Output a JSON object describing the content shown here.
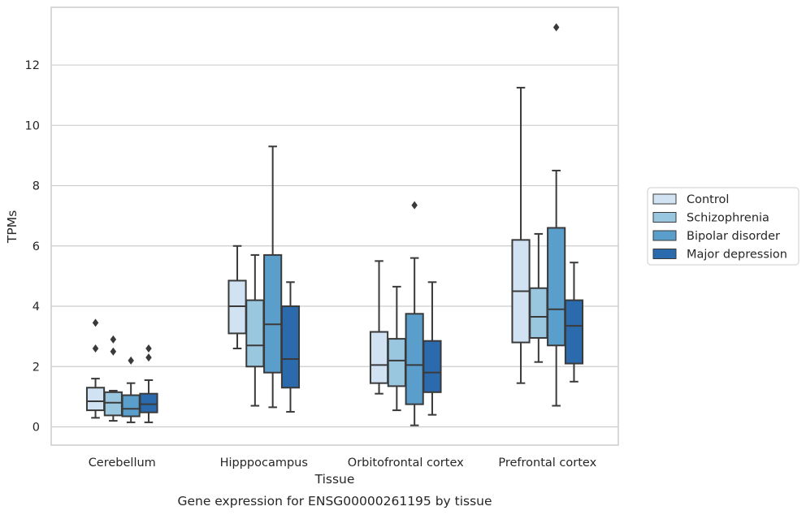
{
  "chart_data": {
    "type": "box",
    "caption": "Gene expression for ENSG00000261195 by tissue",
    "xlabel": "Tissue",
    "ylabel": "TPMs",
    "ylim": [
      -0.6,
      14.0
    ],
    "yticks": [
      0,
      2,
      4,
      6,
      8,
      10,
      12
    ],
    "grid": "horizontal",
    "legend_position": "right",
    "categories": [
      "Cerebellum",
      "Hipppocampus",
      "Orbitofrontal cortex",
      "Prefrontal cortex"
    ],
    "series": [
      {
        "name": "Control",
        "color": "#d1e2f2",
        "boxes": [
          {
            "whislo": 0.3,
            "q1": 0.55,
            "med": 0.85,
            "q3": 1.3,
            "whishi": 1.6,
            "fliers": [
              2.6,
              3.45
            ]
          },
          {
            "whislo": 2.6,
            "q1": 3.1,
            "med": 4.0,
            "q3": 4.85,
            "whishi": 6.0,
            "fliers": []
          },
          {
            "whislo": 1.1,
            "q1": 1.45,
            "med": 2.05,
            "q3": 3.15,
            "whishi": 5.5,
            "fliers": []
          },
          {
            "whislo": 1.45,
            "q1": 2.8,
            "med": 4.5,
            "q3": 6.2,
            "whishi": 11.25,
            "fliers": []
          }
        ]
      },
      {
        "name": "Schizophrenia",
        "color": "#9ac7e0",
        "boxes": [
          {
            "whislo": 0.2,
            "q1": 0.38,
            "med": 0.8,
            "q3": 1.15,
            "whishi": 1.2,
            "fliers": [
              2.5,
              2.9
            ]
          },
          {
            "whislo": 0.7,
            "q1": 2.0,
            "med": 2.7,
            "q3": 4.2,
            "whishi": 5.7,
            "fliers": []
          },
          {
            "whislo": 0.55,
            "q1": 1.35,
            "med": 2.2,
            "q3": 2.92,
            "whishi": 4.65,
            "fliers": []
          },
          {
            "whislo": 2.15,
            "q1": 2.95,
            "med": 3.65,
            "q3": 4.6,
            "whishi": 6.4,
            "fliers": []
          }
        ]
      },
      {
        "name": "Bipolar disorder",
        "color": "#5a9ecc",
        "boxes": [
          {
            "whislo": 0.15,
            "q1": 0.35,
            "med": 0.6,
            "q3": 1.05,
            "whishi": 1.45,
            "fliers": [
              2.2
            ]
          },
          {
            "whislo": 0.65,
            "q1": 1.8,
            "med": 3.4,
            "q3": 5.7,
            "whishi": 9.3,
            "fliers": []
          },
          {
            "whislo": 0.05,
            "q1": 0.75,
            "med": 2.05,
            "q3": 3.75,
            "whishi": 5.6,
            "fliers": [
              7.35
            ]
          },
          {
            "whislo": 0.7,
            "q1": 2.7,
            "med": 3.9,
            "q3": 6.6,
            "whishi": 8.5,
            "fliers": [
              13.25
            ]
          }
        ]
      },
      {
        "name": "Major depression",
        "color": "#2a6aad",
        "boxes": [
          {
            "whislo": 0.15,
            "q1": 0.48,
            "med": 0.75,
            "q3": 1.1,
            "whishi": 1.55,
            "fliers": [
              2.3,
              2.6
            ]
          },
          {
            "whislo": 0.5,
            "q1": 1.3,
            "med": 2.25,
            "q3": 4.0,
            "whishi": 4.8,
            "fliers": []
          },
          {
            "whislo": 0.4,
            "q1": 1.15,
            "med": 1.8,
            "q3": 2.85,
            "whishi": 4.8,
            "fliers": []
          },
          {
            "whislo": 1.5,
            "q1": 2.1,
            "med": 3.35,
            "q3": 4.2,
            "whishi": 5.45,
            "fliers": []
          }
        ]
      }
    ]
  }
}
